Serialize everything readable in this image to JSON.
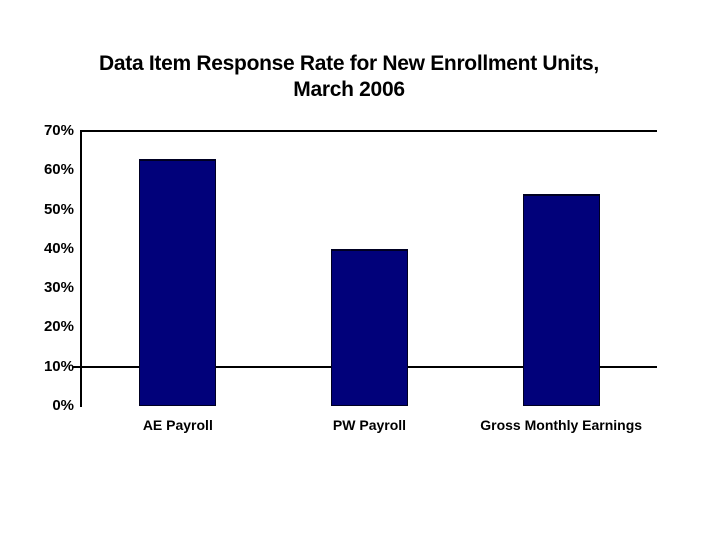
{
  "page": {
    "background_color": "#ffffff",
    "text_color": "#000000"
  },
  "chart_data": {
    "type": "bar",
    "title": "Data Item Response Rate for New Enrollment Units, March 2006",
    "title_lines": [
      "Data Item Response Rate for New Enrollment Units,",
      "March 2006"
    ],
    "xlabel": "",
    "ylabel": "",
    "categories": [
      "AE Payroll",
      "PW Payroll",
      "Gross Monthly Earnings"
    ],
    "values": [
      63,
      40,
      54
    ],
    "value_unit": "%",
    "ylim": [
      0,
      70
    ],
    "ytick_interval": 10,
    "ytick_labels": [
      "0%",
      "10%",
      "20%",
      "30%",
      "40%",
      "50%",
      "60%",
      "70%"
    ],
    "gridlines_y": [
      70,
      10
    ],
    "ytick_mark_at": 10,
    "legend": "none",
    "bar_color": "#01017A",
    "bar_border_color": "#000022",
    "axis_color": "#000000",
    "text_color": "#000000"
  }
}
